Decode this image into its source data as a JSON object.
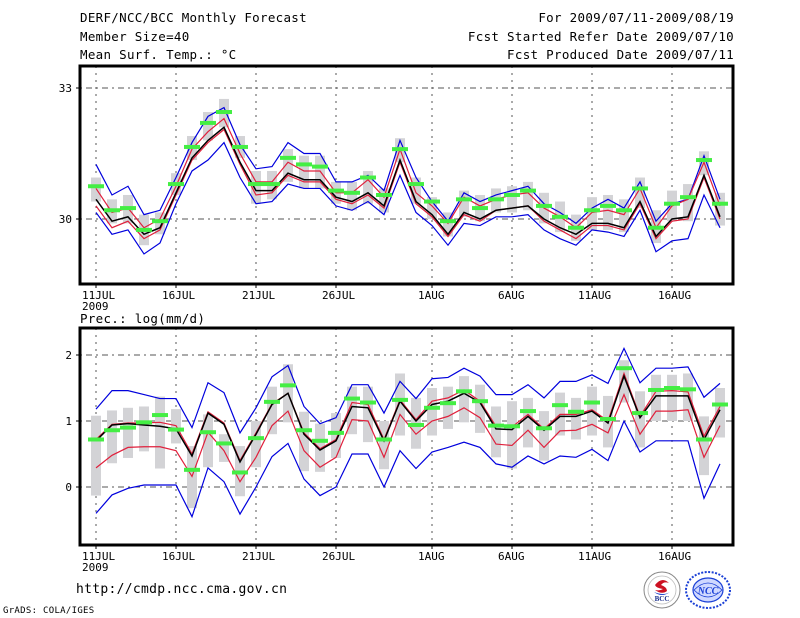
{
  "header": {
    "title": "DERF/NCC/BCC Monthly Forecast",
    "member_size": "Member Size=40",
    "variable": "Mean Surf. Temp.: °C",
    "period": "For 2009/07/11-2009/08/19",
    "started": "Fcst Started Refer Date 2009/07/10",
    "produced": "Fcst Produced Date 2009/07/11"
  },
  "footer": {
    "url": "http://cmdp.ncc.cma.gov.cn",
    "credit": "GrADS: COLA/IGES",
    "logos": [
      "BCC",
      "NCC"
    ]
  },
  "colors": {
    "mean": "#000000",
    "inner_band": "#e0203c",
    "outer_band": "#0000dd",
    "box": "#d3d3d6",
    "observed": "#44ee44",
    "grid": "#555555"
  },
  "chart_data": [
    {
      "type": "line",
      "title": "Mean Surf. Temp.: °C",
      "ylabel": "°C",
      "ylim": [
        27.5,
        34.0
      ],
      "yticks": [
        30,
        33
      ],
      "xtick_labels": [
        "11JUL",
        "16JUL",
        "21JUL",
        "26JUL",
        "1AUG",
        "6AUG",
        "11AUG",
        "16AUG"
      ],
      "xtick_days": [
        0,
        5,
        10,
        15,
        21,
        26,
        31,
        36
      ],
      "x_year_label": "2009",
      "grid": true,
      "n_days": 40,
      "series": [
        {
          "name": "ensemble-mean",
          "color": "black",
          "values": [
            30.45,
            29.95,
            30.05,
            29.65,
            29.8,
            30.6,
            31.4,
            31.8,
            32.1,
            31.3,
            30.65,
            30.65,
            31.05,
            30.9,
            30.9,
            30.5,
            30.4,
            30.6,
            30.3,
            31.35,
            30.4,
            30.1,
            29.65,
            30.15,
            30.0,
            30.2,
            30.25,
            30.3,
            30.0,
            29.8,
            29.65,
            29.9,
            29.9,
            29.8,
            30.4,
            29.6,
            30.0,
            30.05,
            31.0,
            30.05
          ]
        },
        {
          "name": "inner-upper",
          "color": "red",
          "values": [
            30.7,
            30.15,
            30.25,
            29.8,
            30.0,
            30.75,
            31.6,
            32.0,
            32.3,
            31.5,
            30.85,
            30.85,
            31.3,
            31.1,
            31.1,
            30.6,
            30.6,
            30.9,
            30.5,
            31.6,
            30.6,
            30.3,
            29.9,
            30.5,
            30.3,
            30.45,
            30.55,
            30.6,
            30.25,
            30.05,
            29.8,
            30.15,
            30.2,
            30.1,
            30.7,
            29.8,
            30.3,
            30.45,
            31.3,
            30.3
          ]
        },
        {
          "name": "inner-lower",
          "color": "red",
          "values": [
            30.3,
            29.8,
            29.95,
            29.55,
            29.75,
            30.55,
            31.35,
            31.75,
            32.05,
            31.25,
            30.55,
            30.6,
            31.0,
            30.85,
            30.85,
            30.45,
            30.35,
            30.55,
            30.25,
            31.3,
            30.35,
            30.05,
            29.6,
            30.1,
            29.95,
            30.2,
            30.25,
            30.3,
            29.95,
            29.75,
            29.55,
            29.85,
            29.85,
            29.75,
            30.35,
            29.55,
            29.95,
            30.0,
            30.95,
            30.0
          ]
        },
        {
          "name": "outer-upper",
          "color": "blue",
          "values": [
            31.25,
            30.55,
            30.75,
            30.1,
            30.2,
            30.95,
            31.75,
            32.35,
            32.55,
            31.7,
            31.15,
            31.2,
            31.75,
            31.5,
            31.5,
            30.85,
            30.85,
            31.0,
            30.65,
            31.8,
            30.95,
            30.4,
            29.95,
            30.6,
            30.4,
            30.55,
            30.65,
            30.75,
            30.35,
            30.15,
            29.9,
            30.25,
            30.45,
            30.25,
            30.85,
            29.95,
            30.35,
            30.45,
            31.45,
            30.45
          ]
        },
        {
          "name": "outer-lower",
          "color": "blue",
          "values": [
            30.15,
            29.65,
            29.75,
            29.2,
            29.45,
            30.35,
            31.1,
            31.35,
            31.75,
            30.95,
            30.35,
            30.4,
            30.8,
            30.7,
            30.7,
            30.3,
            30.2,
            30.4,
            30.1,
            31.0,
            30.15,
            29.85,
            29.4,
            29.9,
            29.85,
            30.05,
            30.05,
            30.1,
            29.75,
            29.55,
            29.4,
            29.75,
            29.7,
            29.6,
            30.2,
            29.25,
            29.5,
            29.55,
            30.55,
            29.8
          ]
        },
        {
          "name": "observed-or-climatology",
          "color": "green",
          "marker": "bar",
          "values": [
            30.75,
            30.2,
            30.25,
            29.75,
            29.95,
            30.8,
            31.65,
            32.2,
            32.45,
            31.65,
            30.8,
            30.8,
            31.4,
            31.25,
            31.2,
            30.65,
            30.6,
            30.95,
            30.55,
            31.6,
            30.8,
            30.4,
            29.95,
            30.45,
            30.25,
            30.45,
            30.55,
            30.65,
            30.3,
            30.05,
            29.8,
            30.2,
            30.3,
            30.2,
            30.7,
            29.8,
            30.35,
            30.5,
            31.35,
            30.35
          ]
        },
        {
          "name": "ensemble-spread-box-top",
          "color": "gray",
          "values": [
            30.95,
            30.45,
            30.55,
            30.1,
            30.15,
            31.05,
            31.9,
            32.45,
            32.75,
            31.9,
            31.1,
            31.1,
            31.6,
            31.45,
            31.45,
            30.85,
            30.85,
            31.1,
            30.7,
            31.85,
            30.95,
            30.5,
            30.15,
            30.65,
            30.55,
            30.7,
            30.75,
            30.85,
            30.6,
            30.4,
            30.1,
            30.5,
            30.55,
            30.45,
            30.95,
            30.2,
            30.65,
            30.8,
            31.55,
            30.6
          ]
        },
        {
          "name": "ensemble-spread-box-bottom",
          "color": "gray",
          "values": [
            30.4,
            29.9,
            29.9,
            29.4,
            29.65,
            30.55,
            31.35,
            31.8,
            32.1,
            31.4,
            30.35,
            30.45,
            30.85,
            30.7,
            30.7,
            30.35,
            30.2,
            30.35,
            30.15,
            31.3,
            30.35,
            30.0,
            29.6,
            30.05,
            29.95,
            30.15,
            30.15,
            30.2,
            29.9,
            29.7,
            29.5,
            29.75,
            29.75,
            29.7,
            30.25,
            29.45,
            29.95,
            29.95,
            31.0,
            29.85
          ]
        }
      ]
    },
    {
      "type": "line",
      "title": "Prec.: log(mm/d)",
      "ylabel": "log(mm/d)",
      "ylim": [
        -0.9,
        2.4
      ],
      "yticks": [
        0,
        1,
        2
      ],
      "xtick_labels": [
        "11JUL",
        "16JUL",
        "21JUL",
        "26JUL",
        "1AUG",
        "6AUG",
        "11AUG",
        "16AUG"
      ],
      "xtick_days": [
        0,
        5,
        10,
        15,
        21,
        26,
        31,
        36
      ],
      "x_year_label": "2009",
      "grid": true,
      "n_days": 40,
      "series": [
        {
          "name": "ensemble-mean",
          "color": "black",
          "values": [
            0.7,
            0.94,
            0.96,
            0.94,
            0.92,
            0.88,
            0.47,
            1.12,
            0.95,
            0.38,
            0.8,
            1.25,
            1.42,
            0.8,
            0.56,
            0.7,
            1.22,
            1.2,
            0.7,
            1.3,
            1.0,
            1.25,
            1.3,
            1.42,
            1.28,
            0.88,
            0.87,
            1.07,
            0.86,
            1.07,
            1.07,
            1.15,
            0.97,
            1.68,
            1.05,
            1.38,
            1.38,
            1.38,
            0.72,
            1.17
          ]
        },
        {
          "name": "inner-upper",
          "color": "red",
          "values": [
            0.72,
            0.95,
            0.97,
            0.97,
            0.98,
            0.93,
            0.5,
            1.14,
            0.97,
            0.4,
            0.82,
            1.26,
            1.42,
            0.82,
            0.58,
            0.72,
            1.28,
            1.25,
            0.72,
            1.32,
            1.02,
            1.3,
            1.35,
            1.47,
            1.3,
            0.92,
            0.91,
            1.1,
            0.88,
            1.1,
            1.1,
            1.17,
            1.0,
            1.72,
            1.07,
            1.45,
            1.46,
            1.44,
            0.77,
            1.22
          ]
        },
        {
          "name": "inner-lower",
          "color": "red",
          "values": [
            0.29,
            0.48,
            0.6,
            0.61,
            0.61,
            0.55,
            0.16,
            0.83,
            0.55,
            0.08,
            0.45,
            0.93,
            1.15,
            0.55,
            0.3,
            0.45,
            1.02,
            1.0,
            0.45,
            1.1,
            0.8,
            1.0,
            1.07,
            1.2,
            1.05,
            0.65,
            0.63,
            0.86,
            0.6,
            0.85,
            0.86,
            0.95,
            0.82,
            1.4,
            0.8,
            1.15,
            1.15,
            1.17,
            0.45,
            0.93
          ]
        },
        {
          "name": "outer-upper",
          "color": "blue",
          "values": [
            1.18,
            1.46,
            1.46,
            1.4,
            1.34,
            1.34,
            0.9,
            1.58,
            1.43,
            0.82,
            1.2,
            1.67,
            1.84,
            1.22,
            0.96,
            1.05,
            1.55,
            1.55,
            1.12,
            1.6,
            1.34,
            1.64,
            1.66,
            1.8,
            1.68,
            1.4,
            1.4,
            1.55,
            1.35,
            1.6,
            1.6,
            1.7,
            1.57,
            2.1,
            1.58,
            1.8,
            1.8,
            1.82,
            1.36,
            1.57
          ]
        },
        {
          "name": "outer-lower",
          "color": "blue",
          "values": [
            -0.4,
            -0.12,
            -0.02,
            0.03,
            0.03,
            0.03,
            -0.45,
            0.29,
            0.08,
            -0.41,
            0.0,
            0.46,
            0.66,
            0.12,
            -0.13,
            0.0,
            0.5,
            0.5,
            0.0,
            0.55,
            0.28,
            0.53,
            0.6,
            0.68,
            0.6,
            0.35,
            0.3,
            0.47,
            0.35,
            0.47,
            0.45,
            0.57,
            0.4,
            1.0,
            0.53,
            0.7,
            0.7,
            0.7,
            -0.17,
            0.35
          ]
        },
        {
          "name": "observed-or-climatology",
          "color": "green",
          "marker": "bar",
          "values": [
            0.72,
            0.86,
            0.9,
            0.98,
            1.09,
            0.87,
            0.26,
            0.83,
            0.66,
            0.22,
            0.74,
            1.29,
            1.54,
            0.86,
            0.7,
            0.82,
            1.34,
            1.28,
            0.72,
            1.32,
            0.94,
            1.2,
            1.27,
            1.45,
            1.3,
            0.93,
            0.92,
            1.15,
            0.89,
            1.24,
            1.14,
            1.28,
            1.03,
            1.8,
            1.12,
            1.47,
            1.5,
            1.48,
            0.72,
            1.25
          ]
        },
        {
          "name": "ensemble-spread-box-top",
          "color": "gray",
          "values": [
            1.08,
            1.16,
            1.2,
            1.22,
            1.37,
            1.18,
            0.62,
            1.1,
            0.8,
            0.62,
            1.0,
            1.52,
            1.86,
            1.14,
            0.96,
            1.12,
            1.52,
            1.52,
            1.0,
            1.72,
            1.35,
            1.5,
            1.52,
            1.68,
            1.55,
            1.22,
            1.3,
            1.35,
            1.15,
            1.43,
            1.35,
            1.52,
            1.38,
            1.92,
            1.45,
            1.7,
            1.7,
            1.72,
            1.07,
            1.5
          ]
        },
        {
          "name": "ensemble-spread-box-bottom",
          "color": "gray",
          "values": [
            -0.13,
            0.36,
            0.44,
            0.54,
            0.28,
            0.66,
            -0.32,
            0.3,
            0.38,
            -0.14,
            0.3,
            0.8,
            0.98,
            0.24,
            0.23,
            0.44,
            0.8,
            0.68,
            0.27,
            0.78,
            0.58,
            0.78,
            0.88,
            0.98,
            0.82,
            0.45,
            0.28,
            0.6,
            0.4,
            0.78,
            0.72,
            0.78,
            0.6,
            1.28,
            0.6,
            1.0,
            1.0,
            1.0,
            0.18,
            0.75
          ]
        }
      ]
    }
  ]
}
